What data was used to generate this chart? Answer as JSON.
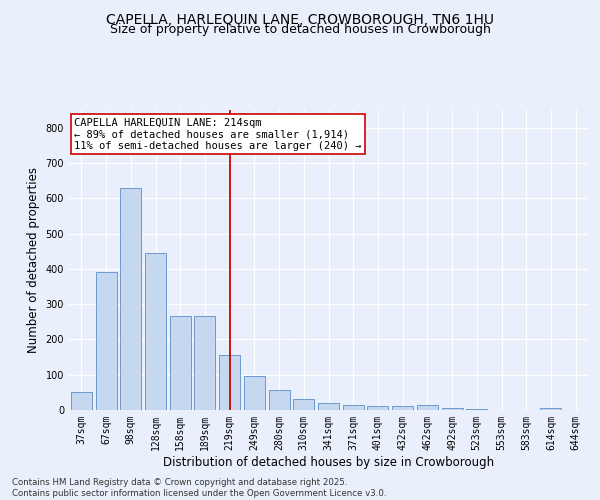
{
  "title": "CAPELLA, HARLEQUIN LANE, CROWBOROUGH, TN6 1HU",
  "subtitle": "Size of property relative to detached houses in Crowborough",
  "xlabel": "Distribution of detached houses by size in Crowborough",
  "ylabel": "Number of detached properties",
  "categories": [
    "37sqm",
    "67sqm",
    "98sqm",
    "128sqm",
    "158sqm",
    "189sqm",
    "219sqm",
    "249sqm",
    "280sqm",
    "310sqm",
    "341sqm",
    "371sqm",
    "401sqm",
    "432sqm",
    "462sqm",
    "492sqm",
    "523sqm",
    "553sqm",
    "583sqm",
    "614sqm",
    "644sqm"
  ],
  "values": [
    50,
    390,
    630,
    445,
    265,
    265,
    155,
    95,
    57,
    30,
    20,
    15,
    12,
    12,
    14,
    5,
    2,
    0,
    0,
    7,
    0
  ],
  "bar_color": "#c5d8f0",
  "bar_edge_color": "#5b8fc9",
  "vline_x": 6.0,
  "vline_color": "#cc0000",
  "annotation_text": "CAPELLA HARLEQUIN LANE: 214sqm\n← 89% of detached houses are smaller (1,914)\n11% of semi-detached houses are larger (240) →",
  "annotation_box_color": "#ffffff",
  "annotation_box_edge": "#cc0000",
  "ylim": [
    0,
    850
  ],
  "yticks": [
    0,
    100,
    200,
    300,
    400,
    500,
    600,
    700,
    800
  ],
  "background_color": "#eaf0fb",
  "grid_color": "#ffffff",
  "footer_line1": "Contains HM Land Registry data © Crown copyright and database right 2025.",
  "footer_line2": "Contains public sector information licensed under the Open Government Licence v3.0.",
  "title_fontsize": 10,
  "subtitle_fontsize": 9,
  "tick_fontsize": 7,
  "xlabel_fontsize": 8.5,
  "ylabel_fontsize": 8.5,
  "annot_fontsize": 7.5
}
